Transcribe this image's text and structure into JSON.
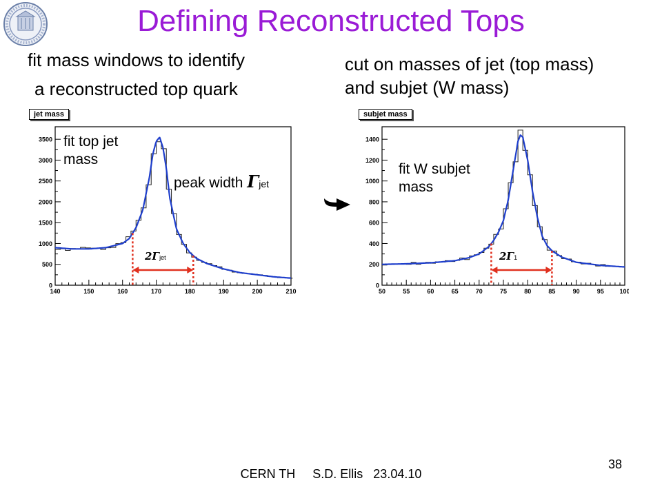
{
  "title": "Defining Reconstructed Tops",
  "left_text": {
    "line1": "fit mass windows to identify",
    "line2": "a reconstructed top quark"
  },
  "right_text": {
    "line1": "cut on masses of jet (top mass)",
    "line2": "and subjet (W mass)"
  },
  "footer": "CERN TH     S.D. Ellis   23.04.10",
  "page_number": "38",
  "colors": {
    "title": "#9a1bd6",
    "fit_curve": "#1f3fcc",
    "window": "#e0301e",
    "arrow": "#000000"
  },
  "icons": [
    "university-seal-icon",
    "right-arrow-icon"
  ],
  "chart_data": [
    {
      "type": "line",
      "histogram_label": "jet mass",
      "annotations": {
        "fit_label_line1": "fit top jet",
        "fit_label_line2": "mass",
        "peak_width_text": "peak width ",
        "peak_width_symbol": "Γ",
        "peak_width_sub": "jet",
        "window_symbol": "2Γ",
        "window_sub": "jet"
      },
      "xlim": [
        140,
        210
      ],
      "ylim": [
        0,
        3800
      ],
      "x_ticks": [
        140,
        150,
        160,
        170,
        180,
        190,
        200,
        210
      ],
      "y_ticks": [
        0,
        500,
        1000,
        1500,
        2000,
        2500,
        3000,
        3500
      ],
      "window": [
        163,
        181
      ],
      "x": [
        140,
        145,
        150,
        155,
        160,
        162,
        164,
        166,
        168,
        169,
        170,
        171,
        172,
        173,
        174,
        176,
        178,
        180,
        182,
        185,
        190,
        195,
        200,
        205,
        210
      ],
      "series": [
        {
          "values": [
            900,
            870,
            870,
            900,
            1000,
            1120,
            1380,
            1800,
            2600,
            3150,
            3450,
            3550,
            3300,
            2800,
            2100,
            1350,
            1000,
            780,
            640,
            520,
            390,
            300,
            250,
            200,
            170
          ]
        }
      ]
    },
    {
      "type": "line",
      "histogram_label": "subjet mass",
      "annotations": {
        "fit_label_line1": "fit W subjet",
        "fit_label_line2": "mass",
        "window_symbol": "2Γ",
        "window_sub": "1"
      },
      "xlim": [
        50,
        100
      ],
      "ylim": [
        0,
        1520
      ],
      "x_ticks": [
        50,
        55,
        60,
        65,
        70,
        75,
        80,
        85,
        90,
        95,
        100
      ],
      "y_ticks": [
        0,
        200,
        400,
        600,
        800,
        1000,
        1200,
        1400
      ],
      "window": [
        72.5,
        85
      ],
      "x": [
        50,
        55,
        60,
        65,
        68,
        70,
        72,
        73,
        74,
        75,
        76,
        77,
        78,
        78.5,
        79,
        80,
        81,
        82,
        83,
        84,
        85,
        87,
        90,
        95,
        100
      ],
      "series": [
        {
          "values": [
            200,
            205,
            215,
            235,
            265,
            300,
            370,
            430,
            510,
            620,
            820,
            1100,
            1380,
            1440,
            1420,
            1200,
            900,
            650,
            470,
            380,
            330,
            270,
            220,
            190,
            175
          ]
        }
      ]
    }
  ]
}
